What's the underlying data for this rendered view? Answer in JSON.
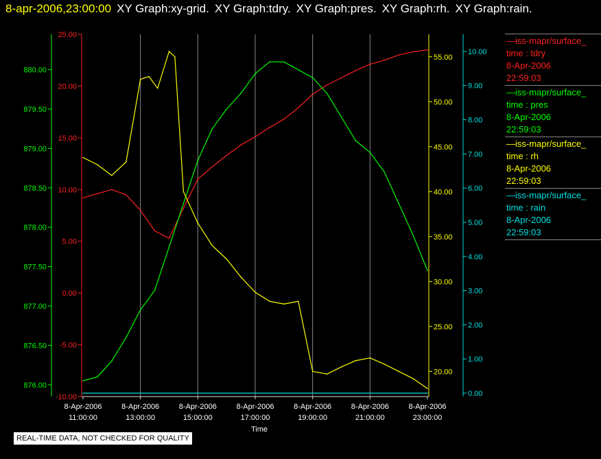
{
  "header": {
    "timestamp": "8-apr-2006,23:00:00",
    "graphs": [
      "XY Graph:xy-grid.",
      "XY Graph:tdry.",
      "XY Graph:pres.",
      "XY Graph:rh.",
      "XY Graph:rain."
    ]
  },
  "legend": [
    {
      "source": "—iss-mapr/surface_",
      "var": "time : tdry",
      "date": "8-Apr-2006",
      "time": "22:59:03",
      "color": "#ff2020"
    },
    {
      "source": "—iss-mapr/surface_",
      "var": "time : pres",
      "date": "8-Apr-2006",
      "time": "22:59:03",
      "color": "#00ff00"
    },
    {
      "source": "—iss-mapr/surface_",
      "var": "time : rh",
      "date": "8-Apr-2006",
      "time": "22:59:03",
      "color": "#ffff00"
    },
    {
      "source": "—iss-mapr/surface_",
      "var": "time : rain",
      "date": "8-Apr-2006",
      "time": "22:59:03",
      "color": "#00e0e0"
    }
  ],
  "badge": "REAL-TIME DATA, NOT CHECKED FOR QUALITY",
  "chart_data": {
    "type": "line",
    "xlabel": "Time",
    "x_ticks": [
      {
        "hour": 11,
        "date": "8-Apr-2006",
        "time": "11:00:00"
      },
      {
        "hour": 13,
        "date": "8-Apr-2006",
        "time": "13:00:00"
      },
      {
        "hour": 15,
        "date": "8-Apr-2006",
        "time": "15:00:00"
      },
      {
        "hour": 17,
        "date": "8-Apr-2006",
        "time": "17:00:00"
      },
      {
        "hour": 19,
        "date": "8-Apr-2006",
        "time": "19:00:00"
      },
      {
        "hour": 21,
        "date": "8-Apr-2006",
        "time": "21:00:00"
      },
      {
        "hour": 23,
        "date": "8-Apr-2006",
        "time": "23:00:00"
      }
    ],
    "xlim": [
      11,
      23
    ],
    "grid": "vertical",
    "axes": [
      {
        "id": "pres",
        "side": "left-outer",
        "color": "#00ff00",
        "ylim": [
          875.85,
          880.45
        ],
        "ticks": [
          876.0,
          876.5,
          877.0,
          877.5,
          878.0,
          878.5,
          879.0,
          879.5,
          880.0
        ],
        "labels": [
          "876.00",
          "876.50",
          "877.00",
          "877.50",
          "878.00",
          "878.50",
          "879.00",
          "879.50",
          "880.00"
        ]
      },
      {
        "id": "tdry",
        "side": "left-inner",
        "color": "#ff2020",
        "ylim": [
          -10,
          25
        ],
        "ticks": [
          -10,
          -5,
          0,
          5,
          10,
          15,
          20,
          25
        ],
        "labels": [
          "-10.00",
          "-5.00",
          "0.00",
          "5.00",
          "10.00",
          "15.00",
          "20.00",
          "25.00"
        ]
      },
      {
        "id": "rh",
        "side": "right-inner",
        "color": "#ffff00",
        "ylim": [
          17.2,
          57.5
        ],
        "ticks": [
          20,
          25,
          30,
          35,
          40,
          45,
          50,
          55
        ],
        "labels": [
          "20.00",
          "25.00",
          "30.00",
          "35.00",
          "40.00",
          "45.00",
          "50.00",
          "55.00"
        ]
      },
      {
        "id": "rain",
        "side": "right-outer",
        "color": "#00e0e0",
        "ylim": [
          -0.1,
          10.5
        ],
        "ticks": [
          0,
          1,
          2,
          3,
          4,
          5,
          6,
          7,
          8,
          9,
          10
        ],
        "labels": [
          "0.00",
          "1.00",
          "2.00",
          "3.00",
          "4.00",
          "5.00",
          "6.00",
          "7.00",
          "8.00",
          "9.00",
          "10.00"
        ]
      }
    ],
    "series": [
      {
        "name": "tdry",
        "axis": "tdry",
        "color": "#ff2020",
        "x": [
          11,
          11.5,
          12,
          12.5,
          13,
          13.5,
          14,
          14.5,
          15,
          15.5,
          16,
          16.5,
          17,
          17.5,
          18,
          18.5,
          19,
          19.5,
          20,
          20.5,
          21,
          21.5,
          22,
          22.5,
          23
        ],
        "y": [
          9.2,
          9.6,
          10.0,
          9.5,
          8.0,
          6.0,
          5.3,
          8.2,
          11.0,
          12.2,
          13.3,
          14.3,
          15.1,
          16.0,
          16.8,
          17.9,
          19.2,
          20.1,
          20.8,
          21.5,
          22.1,
          22.5,
          23.0,
          23.3,
          23.5
        ]
      },
      {
        "name": "pres",
        "axis": "pres",
        "color": "#00ff00",
        "x": [
          11,
          11.5,
          12,
          12.5,
          13,
          13.5,
          14,
          14.5,
          15,
          15.5,
          16,
          16.5,
          17,
          17.5,
          18,
          18.5,
          19,
          19.5,
          20,
          20.5,
          21,
          21.5,
          22,
          22.5,
          23
        ],
        "y": [
          876.05,
          876.1,
          876.3,
          876.6,
          876.95,
          877.2,
          877.75,
          878.3,
          878.85,
          879.25,
          879.5,
          879.7,
          879.95,
          880.1,
          880.1,
          880.0,
          879.9,
          879.7,
          879.4,
          879.1,
          878.95,
          878.7,
          878.3,
          877.9,
          877.45
        ]
      },
      {
        "name": "rh",
        "axis": "rh",
        "color": "#ffff00",
        "x": [
          11,
          11.5,
          12,
          12.5,
          13,
          13.3,
          13.6,
          14,
          14.2,
          14.5,
          15,
          15.5,
          16,
          16.5,
          17,
          17.5,
          18,
          18.5,
          19,
          19.5,
          20,
          20.5,
          21,
          21.5,
          22,
          22.5,
          23
        ],
        "y": [
          43.8,
          43.0,
          41.8,
          43.3,
          52.5,
          52.8,
          51.5,
          55.6,
          55.0,
          40.0,
          36.5,
          34.0,
          32.5,
          30.5,
          28.8,
          27.8,
          27.5,
          27.8,
          20.0,
          19.7,
          20.5,
          21.2,
          21.5,
          20.8,
          20.0,
          19.2,
          18.1
        ]
      },
      {
        "name": "rain",
        "axis": "rain",
        "color": "#00e0e0",
        "x": [
          11,
          23
        ],
        "y": [
          0.0,
          0.0
        ]
      }
    ]
  }
}
